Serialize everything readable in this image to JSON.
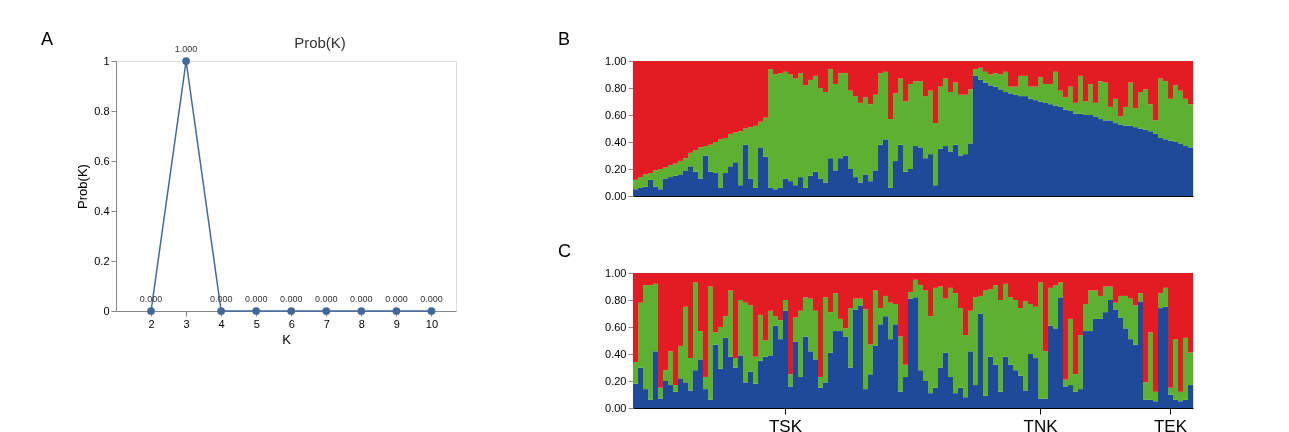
{
  "chart_data": [
    {
      "type": "line",
      "title": "Prob(K)",
      "xlabel": "K",
      "ylabel": "Prob(K)",
      "annotations": [
        "A"
      ],
      "marker": "circle",
      "line_style": "solid",
      "x": [
        2,
        3,
        4,
        5,
        6,
        7,
        8,
        9,
        10
      ],
      "xlim": [
        1,
        10.7
      ],
      "xticks": [
        2,
        3,
        4,
        5,
        6,
        7,
        8,
        9,
        10
      ],
      "ylim": [
        0,
        1
      ],
      "yticks": [
        0,
        0.2,
        0.4,
        0.6,
        0.8,
        1
      ],
      "series": [
        {
          "color": "#41699a",
          "values": [
            0,
            1,
            0,
            0,
            0,
            0,
            0,
            0,
            0
          ],
          "value_labels": [
            "0.000",
            "1.000",
            "0.000",
            "0.000",
            "0.000",
            "0.000",
            "0.000",
            "0.000",
            "0.000"
          ]
        }
      ]
    },
    {
      "type": "bar",
      "stacked": true,
      "annotations": [
        "B"
      ],
      "tick_labels": "y",
      "categories": [
        null,
        null,
        null,
        null,
        null,
        null,
        null,
        null,
        null,
        null,
        null,
        null,
        null,
        null,
        null,
        null,
        null,
        null,
        null,
        null,
        null,
        null,
        null,
        null,
        null,
        null,
        null,
        null,
        null,
        null,
        null,
        null,
        null,
        null,
        null,
        null,
        null,
        null,
        null,
        null,
        null,
        null,
        null,
        null,
        null,
        null,
        null,
        null,
        null,
        null,
        null,
        null,
        null,
        null,
        null,
        null,
        null,
        null,
        null,
        null,
        null,
        null,
        null,
        null,
        null,
        null,
        null,
        null,
        null,
        null,
        null,
        null,
        null,
        null,
        null,
        null,
        null,
        null,
        null,
        null,
        null,
        null,
        null,
        null,
        null,
        null,
        null,
        null,
        null,
        null,
        null,
        null,
        null,
        null,
        null,
        null,
        null,
        null,
        null,
        null,
        null,
        null,
        null,
        null,
        null,
        null,
        null,
        null,
        null,
        null,
        null,
        null
      ],
      "ylim": [
        0,
        1
      ],
      "yticks": [
        {
          "value": 0,
          "label": "0.00"
        },
        {
          "value": 0.2,
          "label": "0.20"
        },
        {
          "value": 0.4,
          "label": "0.40"
        },
        {
          "value": 0.6,
          "label": "0.60"
        },
        {
          "value": 0.8,
          "label": "0.80"
        },
        {
          "value": 1,
          "label": "1.00"
        }
      ],
      "series": [
        {
          "color": "#1f4a9a",
          "values": [
            0.05,
            0.06,
            0.07,
            0.12,
            0.07,
            0.05,
            0.13,
            0.14,
            0.15,
            0.16,
            0.19,
            0.22,
            0.18,
            0.13,
            0.3,
            0.18,
            0.17,
            0.06,
            0.17,
            0.22,
            0.25,
            0.08,
            0.38,
            0.13,
            0.06,
            0.36,
            0.29,
            0.06,
            0.05,
            0.06,
            0.13,
            0.11,
            0.08,
            0.14,
            0.06,
            0.15,
            0.18,
            0.13,
            0.1,
            0.28,
            0.19,
            0.28,
            0.3,
            0.2,
            0.14,
            0.1,
            0.16,
            0.11,
            0.19,
            0.38,
            0.42,
            0.06,
            0.26,
            0.38,
            0.18,
            0.2,
            0.37,
            0.36,
            0.28,
            0.31,
            0.08,
            0.35,
            0.37,
            0.33,
            0.38,
            0.3,
            0.31,
            0.39,
            0.89,
            0.86,
            0.84,
            0.82,
            0.81,
            0.79,
            0.77,
            0.76,
            0.75,
            0.74,
            0.74,
            0.72,
            0.71,
            0.7,
            0.69,
            0.68,
            0.67,
            0.66,
            0.64,
            0.63,
            0.61,
            0.61,
            0.6,
            0.6,
            0.59,
            0.57,
            0.56,
            0.56,
            0.54,
            0.53,
            0.52,
            0.52,
            0.51,
            0.5,
            0.49,
            0.48,
            0.46,
            0.43,
            0.42,
            0.41,
            0.4,
            0.39,
            0.37,
            0.36
          ]
        },
        {
          "color": "#5eb130",
          "values": [
            0.07,
            0.08,
            0.09,
            0.05,
            0.12,
            0.15,
            0.08,
            0.09,
            0.09,
            0.1,
            0.09,
            0.1,
            0.16,
            0.23,
            0.07,
            0.2,
            0.23,
            0.36,
            0.26,
            0.24,
            0.22,
            0.4,
            0.12,
            0.38,
            0.46,
            0.19,
            0.29,
            0.88,
            0.85,
            0.85,
            0.79,
            0.79,
            0.79,
            0.77,
            0.76,
            0.71,
            0.71,
            0.67,
            0.67,
            0.66,
            0.64,
            0.63,
            0.61,
            0.58,
            0.6,
            0.59,
            0.57,
            0.57,
            0.56,
            0.53,
            0.5,
            0.51,
            0.5,
            0.49,
            0.52,
            0.63,
            0.48,
            0.49,
            0.46,
            0.47,
            0.46,
            0.46,
            0.5,
            0.44,
            0.46,
            0.45,
            0.44,
            0.4,
            0.05,
            0.09,
            0.08,
            0.08,
            0.1,
            0.11,
            0.15,
            0.05,
            0.06,
            0.15,
            0.15,
            0.09,
            0.1,
            0.18,
            0.14,
            0.15,
            0.25,
            0.12,
            0.09,
            0.18,
            0.08,
            0.28,
            0.1,
            0.23,
            0.1,
            0.28,
            0.28,
            0.1,
            0.18,
            0.06,
            0.14,
            0.32,
            0.14,
            0.27,
            0.3,
            0.2,
            0.1,
            0.44,
            0.43,
            0.31,
            0.42,
            0.39,
            0.35,
            0.32
          ]
        },
        {
          "color": "#e31b23",
          "values": [
            0.88,
            0.86,
            0.84,
            0.83,
            0.81,
            0.8,
            0.79,
            0.77,
            0.76,
            0.74,
            0.72,
            0.68,
            0.66,
            0.64,
            0.63,
            0.62,
            0.6,
            0.58,
            0.57,
            0.54,
            0.53,
            0.52,
            0.5,
            0.49,
            0.48,
            0.45,
            0.42,
            0.06,
            0.1,
            0.09,
            0.08,
            0.1,
            0.13,
            0.09,
            0.18,
            0.14,
            0.11,
            0.2,
            0.23,
            0.06,
            0.17,
            0.09,
            0.09,
            0.22,
            0.26,
            0.31,
            0.27,
            0.32,
            0.25,
            0.09,
            0.08,
            0.43,
            0.24,
            0.13,
            0.3,
            0.17,
            0.15,
            0.15,
            0.26,
            0.22,
            0.46,
            0.19,
            0.13,
            0.23,
            0.16,
            0.25,
            0.25,
            0.21,
            0.06,
            0.05,
            0.08,
            0.1,
            0.09,
            0.1,
            0.08,
            0.19,
            0.19,
            0.11,
            0.11,
            0.19,
            0.19,
            0.12,
            0.17,
            0.17,
            0.08,
            0.22,
            0.27,
            0.19,
            0.31,
            0.11,
            0.3,
            0.17,
            0.31,
            0.15,
            0.16,
            0.34,
            0.28,
            0.41,
            0.34,
            0.16,
            0.35,
            0.23,
            0.21,
            0.32,
            0.44,
            0.13,
            0.15,
            0.28,
            0.18,
            0.22,
            0.28,
            0.32
          ]
        }
      ]
    },
    {
      "type": "bar",
      "stacked": true,
      "annotations": [
        "C"
      ],
      "categories": [
        null,
        null,
        null,
        null,
        null,
        null,
        null,
        null,
        null,
        null,
        null,
        null,
        null,
        null,
        null,
        null,
        null,
        null,
        null,
        null,
        null,
        null,
        null,
        null,
        null,
        null,
        null,
        null,
        null,
        null,
        "TSK",
        null,
        null,
        null,
        null,
        null,
        null,
        null,
        null,
        null,
        null,
        null,
        null,
        null,
        null,
        null,
        null,
        null,
        null,
        null,
        null,
        null,
        null,
        null,
        null,
        null,
        null,
        null,
        null,
        null,
        null,
        null,
        null,
        null,
        null,
        null,
        null,
        null,
        null,
        null,
        null,
        null,
        null,
        null,
        null,
        null,
        null,
        null,
        null,
        null,
        null,
        "TNK",
        null,
        null,
        null,
        null,
        null,
        null,
        null,
        null,
        null,
        null,
        null,
        null,
        null,
        null,
        null,
        null,
        null,
        null,
        null,
        null,
        null,
        null,
        null,
        null,
        null,
        "TEK",
        null,
        null,
        null,
        null
      ],
      "ylim": [
        0,
        1
      ],
      "yticks": [
        {
          "value": 0,
          "label": "0.00"
        },
        {
          "value": 0.2,
          "label": "0.20"
        },
        {
          "value": 0.4,
          "label": "0.40"
        },
        {
          "value": 0.6,
          "label": "0.60"
        },
        {
          "value": 0.8,
          "label": "0.80"
        },
        {
          "value": 1,
          "label": "1.00"
        }
      ],
      "series": [
        {
          "color": "#1f4a9a",
          "values": [
            0.18,
            0.3,
            0.14,
            0.06,
            0.42,
            0.07,
            0.2,
            0.17,
            0.12,
            0.22,
            0.19,
            0.13,
            0.28,
            0.36,
            0.14,
            0.06,
            0.47,
            0.29,
            0.52,
            0.38,
            0.3,
            0.39,
            0.19,
            0.27,
            0.18,
            0.35,
            0.38,
            0.39,
            0.61,
            0.51,
            0.72,
            0.16,
            0.49,
            0.23,
            0.53,
            0.42,
            0.36,
            0.15,
            0.19,
            0.41,
            0.57,
            0.57,
            0.53,
            0.3,
            0.73,
            0.76,
            0.14,
            0.25,
            0.46,
            0.62,
            0.68,
            0.51,
            0.62,
            0.12,
            0.23,
            0.81,
            0.82,
            0.28,
            0.2,
            0.11,
            0.15,
            0.3,
            0.41,
            0.23,
            0.11,
            0.15,
            0.08,
            0.42,
            0.17,
            0.7,
            0.09,
            0.38,
            0.32,
            0.12,
            0.38,
            0.32,
            0.28,
            0.24,
            0.13,
            0.4,
            0.37,
            0.07,
            0.07,
            0.61,
            0.59,
            0.82,
            0.16,
            0.17,
            0.12,
            0.14,
            0.57,
            0.57,
            0.66,
            0.66,
            0.71,
            0.8,
            0.73,
            0.67,
            0.59,
            0.51,
            0.47,
            0.79,
            0.06,
            0.06,
            0.05,
            0.74,
            0.75,
            0.1,
            0.06,
            0.05,
            0.06,
            0.17
          ]
        },
        {
          "color": "#5eb130",
          "values": [
            0.16,
            0.48,
            0.77,
            0.85,
            0.5,
            0.08,
            0.08,
            0.25,
            0.05,
            0.24,
            0.56,
            0.24,
            0.65,
            0.21,
            0.09,
            0.84,
            0.09,
            0.31,
            0.16,
            0.49,
            0.07,
            0.41,
            0.59,
            0.49,
            0.2,
            0.34,
            0.12,
            0.33,
            0.07,
            0.14,
            0.08,
            0.09,
            0.18,
            0.49,
            0.29,
            0.39,
            0.36,
            0.08,
            0.63,
            0.3,
            0.28,
            0.09,
            0.06,
            0.44,
            0.08,
            0.05,
            0.59,
            0.22,
            0.41,
            0.12,
            0.15,
            0.27,
            0.15,
            0.41,
            0.09,
            0.05,
            0.13,
            0.63,
            0.67,
            0.57,
            0.74,
            0.6,
            0.4,
            0.66,
            0.74,
            0.59,
            0.46,
            0.3,
            0.65,
            0.13,
            0.78,
            0.5,
            0.59,
            0.68,
            0.54,
            0.5,
            0.52,
            0.5,
            0.66,
            0.37,
            0.38,
            0.86,
            0.35,
            0.28,
            0.32,
            0.11,
            0.05,
            0.49,
            0.13,
            0.4,
            0.2,
            0.3,
            0.21,
            0.17,
            0.19,
            0.1,
            0.05,
            0.16,
            0.24,
            0.3,
            0.29,
            0.06,
            0.13,
            0.5,
            0.07,
            0.11,
            0.14,
            0.05,
            0.45,
            0.07,
            0.46,
            0.24
          ]
        },
        {
          "color": "#e31b23",
          "values": [
            0.66,
            0.22,
            0.09,
            0.09,
            0.08,
            0.85,
            0.72,
            0.58,
            0.83,
            0.54,
            0.25,
            0.63,
            0.07,
            0.43,
            0.77,
            0.1,
            0.44,
            0.4,
            0.32,
            0.13,
            0.63,
            0.2,
            0.22,
            0.24,
            0.62,
            0.31,
            0.5,
            0.28,
            0.32,
            0.35,
            0.2,
            0.75,
            0.33,
            0.28,
            0.18,
            0.19,
            0.28,
            0.77,
            0.18,
            0.29,
            0.15,
            0.34,
            0.41,
            0.26,
            0.19,
            0.19,
            0.27,
            0.53,
            0.13,
            0.26,
            0.17,
            0.22,
            0.23,
            0.47,
            0.68,
            0.14,
            0.05,
            0.09,
            0.13,
            0.32,
            0.11,
            0.1,
            0.19,
            0.11,
            0.15,
            0.26,
            0.46,
            0.28,
            0.18,
            0.17,
            0.13,
            0.12,
            0.09,
            0.2,
            0.08,
            0.18,
            0.2,
            0.26,
            0.21,
            0.23,
            0.25,
            0.07,
            0.58,
            0.11,
            0.09,
            0.07,
            0.79,
            0.34,
            0.75,
            0.46,
            0.23,
            0.13,
            0.13,
            0.17,
            0.1,
            0.1,
            0.22,
            0.17,
            0.17,
            0.19,
            0.24,
            0.15,
            0.81,
            0.44,
            0.88,
            0.15,
            0.11,
            0.85,
            0.49,
            0.88,
            0.48,
            0.59
          ]
        }
      ]
    }
  ]
}
